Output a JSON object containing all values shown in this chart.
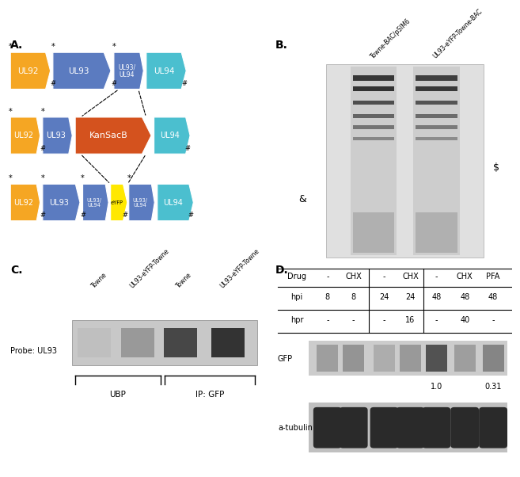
{
  "color_yellow": "#F5A623",
  "color_blue": "#5B7BC0",
  "color_orange": "#D4521E",
  "color_cyan": "#4BBFCF",
  "color_bright_yellow": "#FFE800",
  "drug_row": [
    "Drug",
    "-",
    "CHX",
    "-",
    "CHX",
    "-",
    "CHX",
    "PFA"
  ],
  "hpi_row": [
    "hpi",
    "8",
    "8",
    "24",
    "24",
    "48",
    "48",
    "48"
  ],
  "hpr_row": [
    "hpr",
    "-",
    "-",
    "-",
    "16",
    "-",
    "40",
    "-"
  ],
  "gfp_val1": "1.0",
  "gfp_val2": "0.31",
  "col_labels_C": [
    "Towne",
    "UL93-eYFP-Towne",
    "Towne",
    "UL93-eYFP-Towne"
  ],
  "western_blot_cols": [
    "Towne-BAC/pSIM6",
    "UL93-eYFP-Towne-BAC"
  ],
  "probe_label": "Probe: UL93",
  "ubp_label": "UBP",
  "ip_label": "IP: GFP",
  "gfp_label": "GFP",
  "atubulin_label": "a-tubulin"
}
